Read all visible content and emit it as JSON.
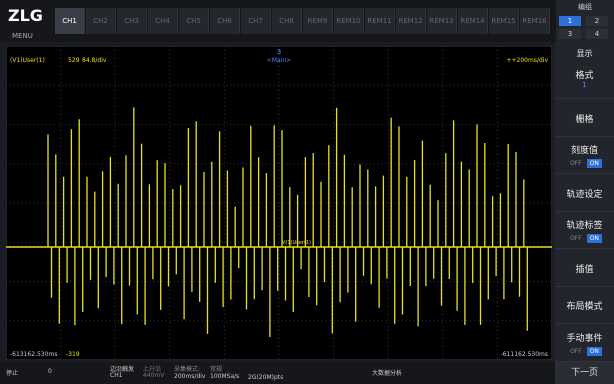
{
  "header": {
    "logo": "ZLG",
    "menu": "MENU",
    "tabs": [
      "CH1",
      "CH2",
      "CH3",
      "CH4",
      "CH5",
      "CH6",
      "CH7",
      "CH8",
      "REM9",
      "REM10",
      "REM11",
      "REM12",
      "REM13",
      "REM14",
      "REM15",
      "REM16"
    ],
    "group": {
      "title": "编组",
      "buttons": [
        "1",
        "2",
        "3",
        "4"
      ]
    }
  },
  "plot": {
    "trace_label": "(V1)User(1)",
    "count": "529",
    "scale": "84.8/div",
    "view": "<Main>",
    "timebase": "++200ms/div",
    "marker": "3",
    "baseline_label": "V(1)User(1)",
    "x_start": "-613162.530ms",
    "cursor": "-319",
    "x_end": "-611162.530ms"
  },
  "status": {
    "state": "停止",
    "value": "0",
    "trigger": "边沿触发",
    "trigger_source": "CH1",
    "edge": "上升沿",
    "level": "440mV",
    "mode_label": "采集模式:",
    "mode": "常规",
    "timebase": "200ms/div",
    "rate": "100MSa/s",
    "points": "2G(20M)pts",
    "analysis": "大数据分析"
  },
  "side_menu": {
    "title": "显示",
    "items": [
      {
        "label": "格式",
        "value": "1"
      },
      {
        "label": "栅格"
      },
      {
        "label": "刻度值",
        "off": "OFF",
        "on": "ON"
      },
      {
        "label": "轨迹设定"
      },
      {
        "label": "轨迹标签",
        "off": "OFF",
        "on": "ON"
      },
      {
        "label": "插值"
      },
      {
        "label": "布局模式"
      },
      {
        "label": "手动事件",
        "off": "OFF",
        "on": "ON"
      }
    ],
    "next": "下一页"
  }
}
